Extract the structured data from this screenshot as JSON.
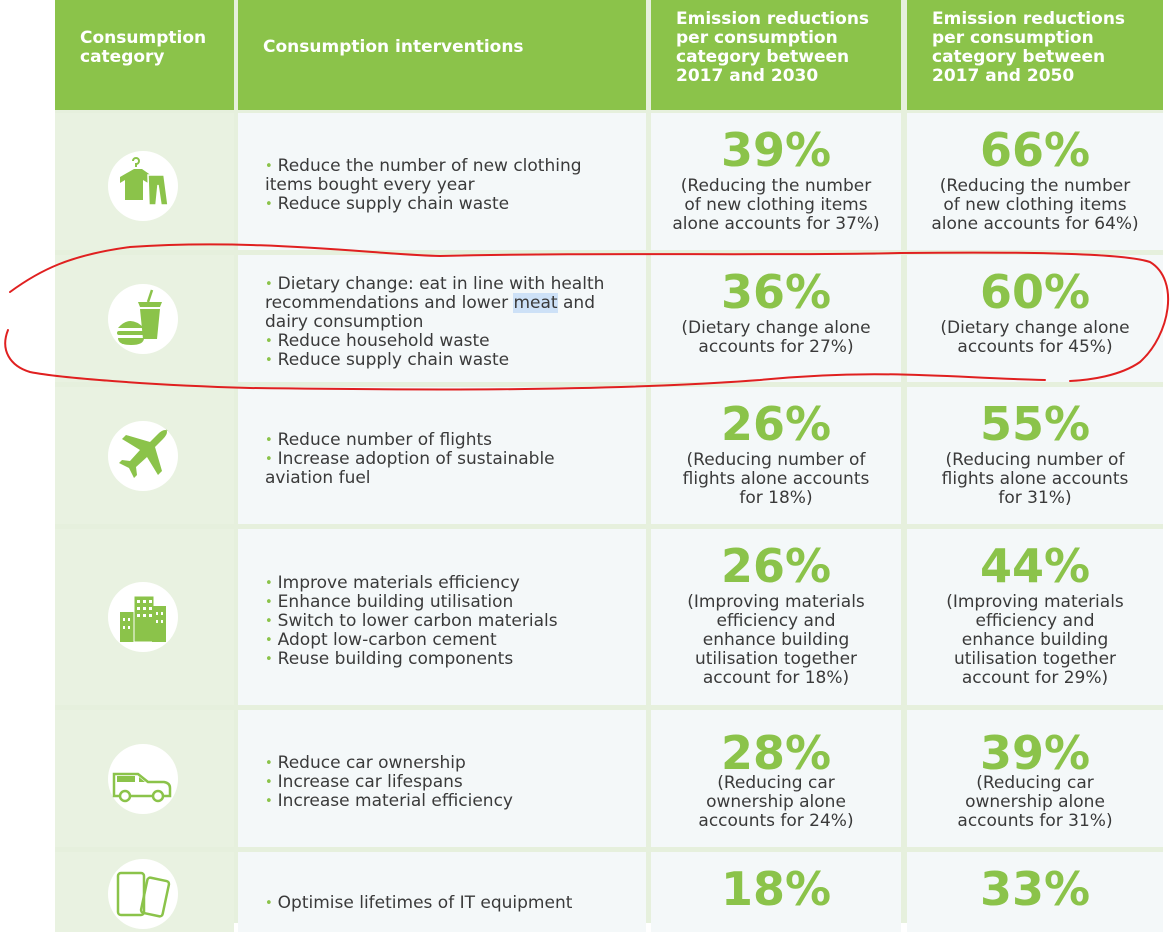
{
  "headers": {
    "category": [
      "Consumption",
      "category"
    ],
    "interventions": [
      "Consumption interventions"
    ],
    "reduction_2030": [
      "Emission reductions",
      "per consumption",
      "category between",
      "2017 and 2030"
    ],
    "reduction_2050": [
      "Emission reductions",
      "per consumption",
      "category between",
      "2017 and 2050"
    ]
  },
  "rows": [
    {
      "icon": "clothing-icon",
      "interventions": [
        "Reduce the number of new clothing items bought every year",
        "Reduce supply chain waste"
      ],
      "pct_2030": "39%",
      "note_2030": [
        "(Reducing the number",
        "of new clothing items",
        "alone accounts for 37%)"
      ],
      "pct_2050": "66%",
      "note_2050": [
        "(Reducing the number",
        "of new clothing items",
        "alone accounts for 64%)"
      ]
    },
    {
      "icon": "food-icon",
      "interventions": [
        "Dietary change: eat in line with health recommendations and lower meat and dairy consumption",
        "Reduce household waste",
        "Reduce supply chain waste"
      ],
      "pct_2030": "36%",
      "note_2030": [
        "(Dietary change alone",
        "accounts for 27%)"
      ],
      "pct_2050": "60%",
      "note_2050": [
        "(Dietary change alone",
        "accounts for 45%)"
      ]
    },
    {
      "icon": "airplane-icon",
      "interventions": [
        "Reduce number of flights",
        "Increase adoption of sustainable aviation fuel"
      ],
      "pct_2030": "26%",
      "note_2030": [
        "(Reducing number of",
        "flights alone accounts",
        "for 18%)"
      ],
      "pct_2050": "55%",
      "note_2050": [
        "(Reducing number of",
        "flights alone accounts",
        "for 31%)"
      ]
    },
    {
      "icon": "buildings-icon",
      "interventions": [
        "Improve materials efficiency",
        "Enhance building utilisation",
        "Switch to lower carbon materials",
        "Adopt low-carbon cement",
        "Reuse building components"
      ],
      "pct_2030": "26%",
      "note_2030": [
        "(Improving materials",
        "efficiency and",
        "enhance building",
        "utilisation together",
        "account for 18%)"
      ],
      "pct_2050": "44%",
      "note_2050": [
        "(Improving materials",
        "efficiency and",
        "enhance building",
        "utilisation together",
        "account for 29%)"
      ]
    },
    {
      "icon": "car-icon",
      "interventions": [
        "Reduce car ownership",
        "Increase car lifespans",
        "Increase material efficiency"
      ],
      "pct_2030": "28%",
      "note_2030": [
        "(Reducing car",
        "ownership alone",
        "accounts for 24%)"
      ],
      "pct_2050": "39%",
      "note_2050": [
        "(Reducing car",
        "ownership alone",
        "accounts for 31%)"
      ]
    },
    {
      "icon": "devices-icon",
      "interventions": [
        "Optimise lifetimes of IT equipment"
      ],
      "pct_2030": "18%",
      "note_2030": [],
      "pct_2050": "33%",
      "note_2050": []
    }
  ],
  "highlight_word": "meat",
  "colors": {
    "accent": "#8bc34a",
    "text": "#3a3a3a",
    "annotation": "#e02020",
    "highlight": "#cde1f7"
  }
}
